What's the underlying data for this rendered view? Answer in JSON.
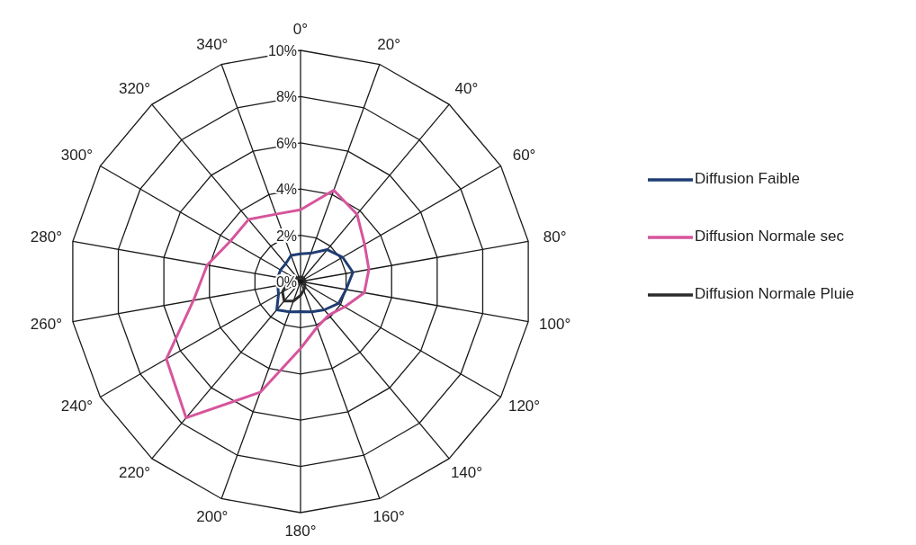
{
  "chart_data": {
    "type": "radar",
    "categories": [
      "0°",
      "20°",
      "40°",
      "60°",
      "80°",
      "100°",
      "120°",
      "140°",
      "160°",
      "180°",
      "200°",
      "220°",
      "240°",
      "260°",
      "280°",
      "300°",
      "320°",
      "340°"
    ],
    "ylim": [
      0,
      10
    ],
    "yticks": [
      {
        "value": 0,
        "label": "0%"
      },
      {
        "value": 2,
        "label": "2%"
      },
      {
        "value": 4,
        "label": "4%"
      },
      {
        "value": 6,
        "label": "6%"
      },
      {
        "value": 8,
        "label": "8%"
      },
      {
        "value": 10,
        "label": "10%"
      }
    ],
    "grid": true,
    "legend": "right",
    "line_style": "solid",
    "marker": "none",
    "series": [
      {
        "name": "Diffusion Faible",
        "color": "#1f3d73",
        "values": [
          1.2,
          1.3,
          1.8,
          2.1,
          2.3,
          2.0,
          1.9,
          1.6,
          1.4,
          1.3,
          1.4,
          1.6,
          1.1,
          1.0,
          1.0,
          1.0,
          1.0,
          1.2
        ]
      },
      {
        "name": "Diffusion Normale sec",
        "color": "#d6559c",
        "values": [
          3.1,
          4.2,
          3.8,
          3.2,
          3.0,
          2.8,
          2.2,
          1.9,
          2.1,
          2.9,
          5.1,
          7.7,
          6.7,
          4.7,
          4.1,
          3.5,
          3.5,
          3.1
        ]
      },
      {
        "name": "Diffusion Normale Pluie",
        "color": "#2b2b2b",
        "values": [
          0.2,
          0.2,
          0.2,
          0.2,
          0.2,
          0.2,
          0.2,
          0.3,
          0.4,
          0.6,
          0.9,
          1.1,
          0.9,
          0.6,
          0.4,
          0.3,
          0.2,
          0.2
        ]
      }
    ]
  }
}
